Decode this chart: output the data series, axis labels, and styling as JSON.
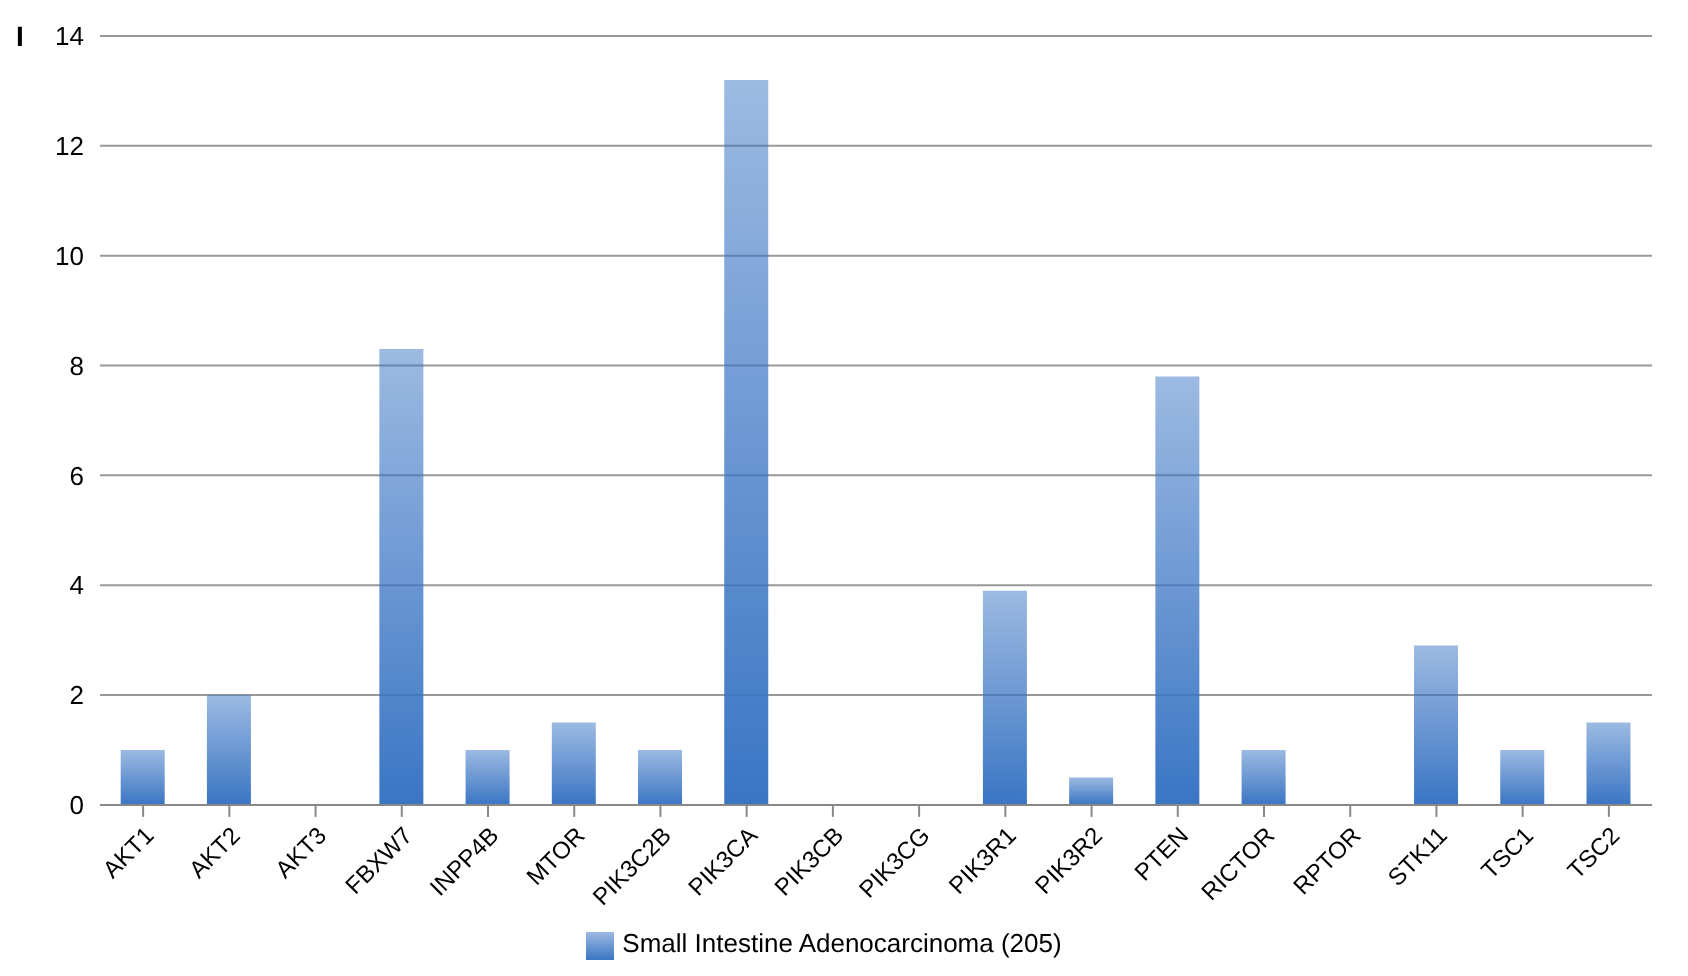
{
  "chart_data": {
    "type": "bar",
    "categories": [
      "AKT1",
      "AKT2",
      "AKT3",
      "FBXW7",
      "INPP4B",
      "MTOR",
      "PIK3C2B",
      "PIK3CA",
      "PIK3CB",
      "PIK3CG",
      "PIK3R1",
      "PIK3R2",
      "PTEN",
      "RICTOR",
      "RPTOR",
      "STK11",
      "TSC1",
      "TSC2"
    ],
    "series": [
      {
        "name": "Small Intestine Adenocarcinoma (205)",
        "color": "#3a75c4",
        "values": [
          1.0,
          2.0,
          0,
          8.3,
          1.0,
          1.5,
          1.0,
          13.2,
          0,
          0,
          3.9,
          0.5,
          7.8,
          1.0,
          0,
          2.9,
          1.0,
          1.5
        ]
      }
    ],
    "ylim": [
      0,
      14
    ],
    "yticks": [
      0,
      2,
      4,
      6,
      8,
      10,
      12,
      14
    ],
    "grid": "y",
    "legend": "bottom",
    "annotations": [
      "I"
    ]
  }
}
